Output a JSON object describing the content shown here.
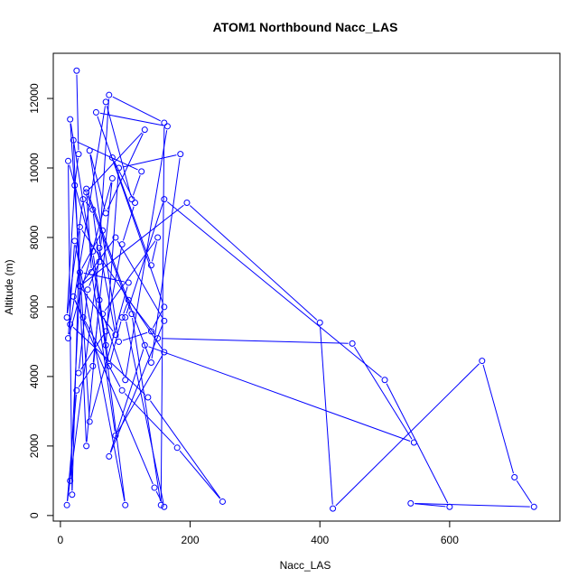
{
  "chart_data": {
    "type": "line",
    "title": "ATOM1 Northbound Nacc_LAS",
    "xlabel": "Nacc_LAS",
    "ylabel": "Altitude (m)",
    "xlim": [
      -11,
      770
    ],
    "ylim": [
      -160,
      13300
    ],
    "xticks": [
      0,
      200,
      400,
      600
    ],
    "yticks": [
      0,
      2000,
      4000,
      6000,
      8000,
      10000,
      12000
    ],
    "grid": false,
    "markers": "open-circle",
    "color": "#0000ff",
    "series": [
      {
        "x": [
          25,
          28,
          22,
          10,
          35,
          50,
          60,
          42,
          28,
          70,
          95,
          115,
          80,
          140,
          150,
          65,
          100,
          165,
          55,
          160,
          140,
          90,
          45,
          70,
          130,
          40,
          110,
          155,
          160,
          75,
          60,
          85,
          30,
          195,
          400,
          420,
          650,
          700,
          730,
          540,
          600,
          500,
          160,
          100,
          160,
          145,
          20,
          35,
          95,
          180,
          250,
          135,
          15,
          70,
          110,
          125,
          20,
          40,
          60,
          100,
          22,
          12,
          80,
          50,
          25,
          10,
          65,
          30,
          105,
          45,
          15,
          70,
          90,
          185,
          140,
          40,
          48,
          85,
          160,
          30,
          18,
          12,
          50,
          75,
          95,
          105,
          150,
          450,
          545,
          130,
          75,
          160,
          85,
          30,
          15
        ],
        "y": [
          12800,
          10400,
          9500,
          5700,
          9100,
          8800,
          7300,
          6500,
          4100,
          5300,
          7800,
          9000,
          10300,
          7200,
          8000,
          5800,
          3900,
          11200,
          11600,
          6000,
          5300,
          5000,
          10500,
          8700,
          11100,
          9300,
          5800,
          300,
          11300,
          12100,
          7700,
          5200,
          6600,
          9000,
          5550,
          200,
          4450,
          1100,
          250,
          350,
          250,
          3900,
          9100,
          5700,
          250,
          800,
          6300,
          5700,
          3600,
          1950,
          400,
          3400,
          5500,
          11900,
          9100,
          9900,
          10800,
          2000,
          6200,
          300,
          7900,
          5100,
          9700,
          4300,
          3600,
          300,
          8200,
          7000,
          6700,
          2700,
          11400,
          4900,
          10000,
          10400,
          4400,
          9400,
          7000,
          2300,
          4700,
          8300,
          600,
          10200,
          7600,
          4300,
          5700,
          6200,
          5100,
          4950,
          2100,
          4900,
          1700,
          5600,
          8000,
          6600,
          1000
        ]
      }
    ]
  }
}
